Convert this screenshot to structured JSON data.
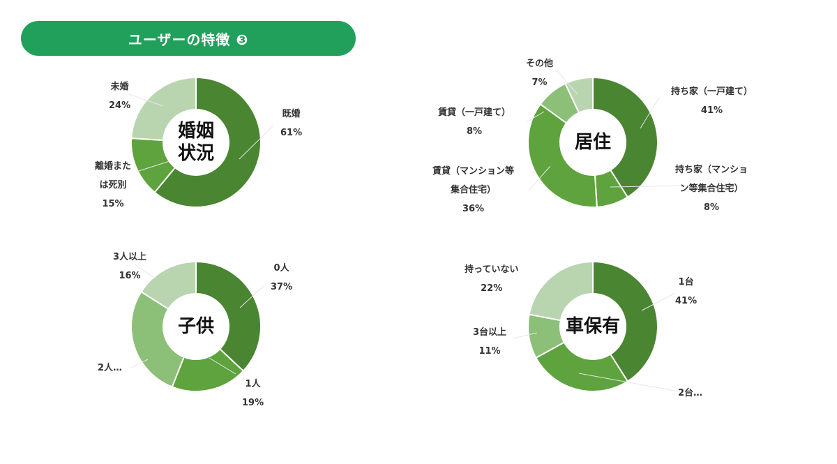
{
  "header": {
    "title": "ユーザーの特徴 ❸"
  },
  "colors": {
    "header_bg": "#21a05c",
    "slice_dark": "#4a8532",
    "slice_mid": "#5ea33e",
    "slice_light": "#8cbf78",
    "slice_pale": "#b9d5b0"
  },
  "chart_data": [
    {
      "type": "pie",
      "title": "婚姻\n状況",
      "slices": [
        {
          "name": "既婚",
          "value": 61,
          "label": "既婚\n61%"
        },
        {
          "name": "離婚または死別",
          "value": 15,
          "label": "離婚また\nは死別\n15%"
        },
        {
          "name": "未婚",
          "value": 24,
          "label": "未婚\n24%"
        }
      ]
    },
    {
      "type": "pie",
      "title": "居住",
      "slices": [
        {
          "name": "持ち家（一戸建て）",
          "value": 41,
          "label": "持ち家（一戸建て）\n41%"
        },
        {
          "name": "持ち家（マンション等集合住宅）",
          "value": 8,
          "label": "持ち家（マンショ\nン等集合住宅）\n8%"
        },
        {
          "name": "賃貸（マンション等集合住宅）",
          "value": 36,
          "label": "賃貸（マンション等\n集合住宅）\n36%"
        },
        {
          "name": "賃貸（一戸建て）",
          "value": 8,
          "label": "賃貸（一戸建て）\n8%"
        },
        {
          "name": "その他",
          "value": 7,
          "label": "その他\n7%"
        }
      ]
    },
    {
      "type": "pie",
      "title": "子供",
      "slices": [
        {
          "name": "0人",
          "value": 37,
          "label": "0人\n37%"
        },
        {
          "name": "1人",
          "value": 19,
          "label": "1人\n19%"
        },
        {
          "name": "2人…",
          "value": 28,
          "label": "2人…"
        },
        {
          "name": "3人以上",
          "value": 16,
          "label": "3人以上\n16%"
        }
      ]
    },
    {
      "type": "pie",
      "title": "車保有",
      "slices": [
        {
          "name": "1台",
          "value": 41,
          "label": "1台\n41%"
        },
        {
          "name": "2台…",
          "value": 26,
          "label": "2台…"
        },
        {
          "name": "3台以上",
          "value": 11,
          "label": "3台以上\n11%"
        },
        {
          "name": "持っていない",
          "value": 22,
          "label": "持っていない\n22%"
        }
      ]
    }
  ]
}
